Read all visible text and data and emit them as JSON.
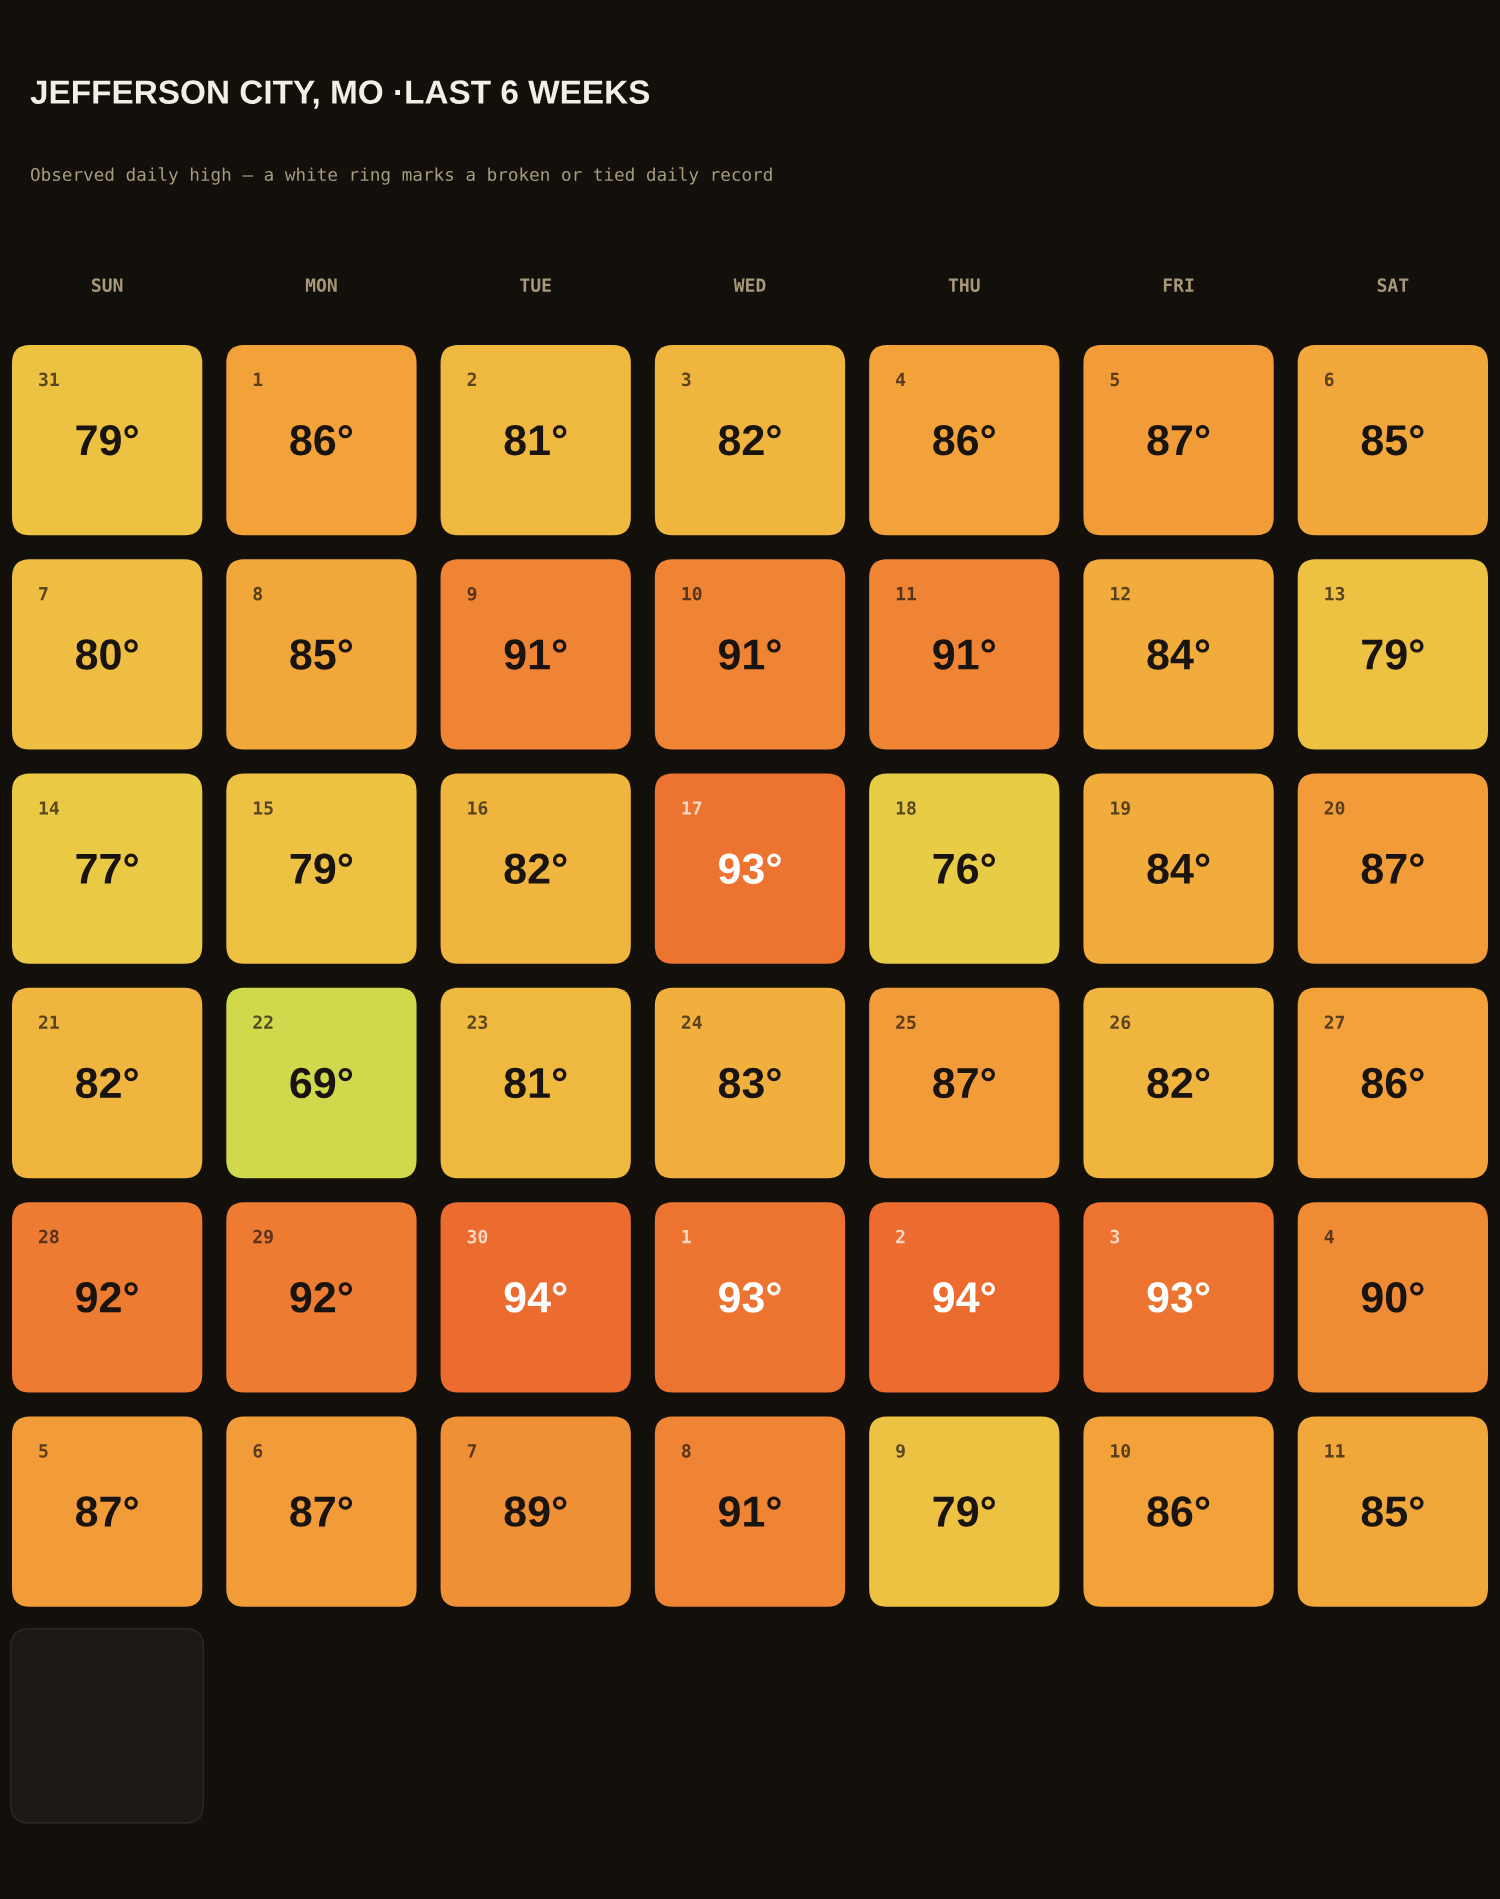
{
  "chart_data": {
    "type": "heatmap",
    "title": "JEFFERSON CITY, MO ·LAST 6 WEEKS",
    "subtitle": "Observed daily high — a white ring marks a broken or tied daily record",
    "categories": [
      "SUN",
      "MON",
      "TUE",
      "WED",
      "THU",
      "FRI",
      "SAT"
    ],
    "y_categories": [
      null,
      null,
      null,
      null,
      null,
      null
    ],
    "cells": [
      [
        79,
        86,
        81,
        82,
        86,
        87,
        85
      ],
      [
        80,
        85,
        91,
        91,
        91,
        84,
        79
      ],
      [
        77,
        79,
        82,
        93,
        76,
        84,
        87
      ],
      [
        82,
        69,
        81,
        83,
        87,
        82,
        86
      ],
      [
        92,
        92,
        94,
        93,
        94,
        93,
        90
      ],
      [
        87,
        87,
        89,
        91,
        79,
        86,
        85
      ]
    ],
    "cell_labels": [
      [
        "79°",
        "86°",
        "81°",
        "82°",
        "86°",
        "87°",
        "85°"
      ],
      [
        "80°",
        "85°",
        "91°",
        "91°",
        "91°",
        "84°",
        "79°"
      ],
      [
        "77°",
        "79°",
        "82°",
        "93°",
        "76°",
        "84°",
        "87°"
      ],
      [
        "82°",
        "69°",
        "81°",
        "83°",
        "87°",
        "82°",
        "86°"
      ],
      [
        "92°",
        "92°",
        "94°",
        "93°",
        "94°",
        "93°",
        "90°"
      ],
      [
        "87°",
        "87°",
        "89°",
        "91°",
        "79°",
        "86°",
        "85°"
      ]
    ],
    "annotations": [
      "31",
      "1",
      "2",
      "3",
      "4",
      "5",
      "6",
      "7",
      "8",
      "9",
      "10",
      "11",
      "12",
      "13",
      "14",
      "15",
      "16",
      "17",
      "18",
      "19",
      "20",
      "21",
      "22",
      "23",
      "24",
      "25",
      "26",
      "27",
      "28",
      "29",
      "30",
      "1",
      "2",
      "3",
      "4",
      "5",
      "6",
      "7",
      "8",
      "9",
      "10",
      "11"
    ]
  }
}
